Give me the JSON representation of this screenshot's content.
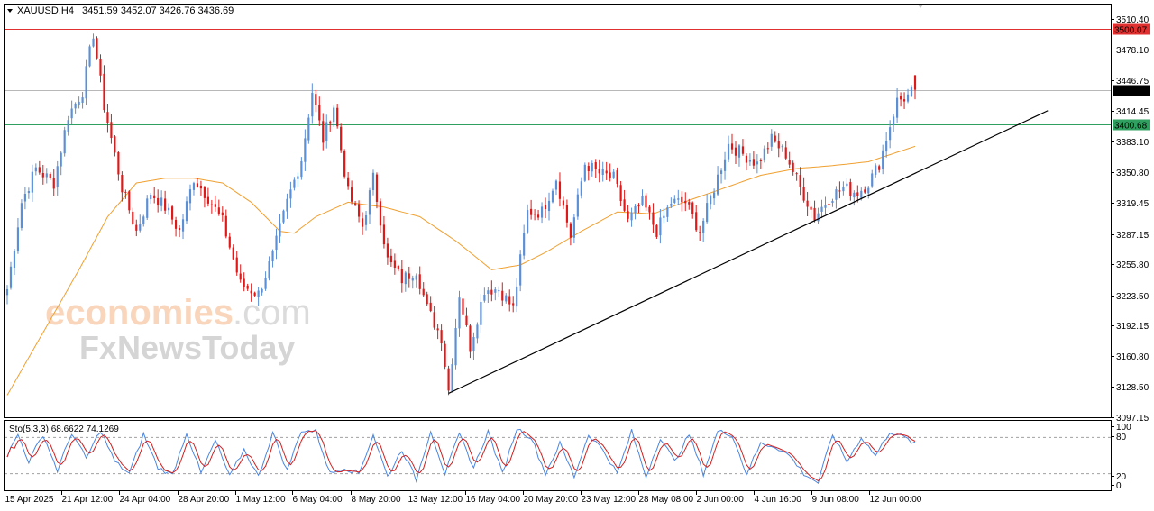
{
  "header": {
    "symbol": "XAUUSD,H4",
    "ohlc": "3451.59 3452.07 3426.76 3436.69"
  },
  "watermark": {
    "line1_a": "economies",
    "line1_b": ".com",
    "line2": "FxNewsToday"
  },
  "colors": {
    "bull": "#5b8fd6",
    "bear": "#e01818",
    "ma": "#f0a030",
    "resistance": "#e03030",
    "support": "#30a060",
    "current": "#b8b8b8",
    "trendline": "#000000",
    "stoch_main": "#4a86e0",
    "stoch_signal": "#d02020"
  },
  "chart_data": [
    {
      "type": "candlestick",
      "title": "XAUUSD,H4",
      "ohlc_last": {
        "open": 3451.59,
        "high": 3452.07,
        "low": 3426.76,
        "close": 3436.69
      },
      "ylim": [
        3097.15,
        3525
      ],
      "y_ticks": [
        "3510.40",
        "3478.10",
        "3446.75",
        "3414.45",
        "3383.10",
        "3350.80",
        "3319.45",
        "3287.15",
        "3255.80",
        "3223.50",
        "3192.15",
        "3160.80",
        "3128.50",
        "3097.15"
      ],
      "x_ticks": [
        "15 Apr 2025",
        "21 Apr 12:00",
        "24 Apr 04:00",
        "28 Apr 20:00",
        "1 May 12:00",
        "6 May 04:00",
        "8 May 20:00",
        "13 May 12:00",
        "16 May 04:00",
        "20 May 20:00",
        "23 May 12:00",
        "28 May 08:00",
        "2 Jun 00:00",
        "4 Jun 16:00",
        "9 Jun 08:00",
        "12 Jun 00:00"
      ],
      "horizontal_lines": [
        {
          "label": "3500.07",
          "value": 3500.07,
          "role": "resistance"
        },
        {
          "label": "3436.69",
          "value": 3436.69,
          "role": "current"
        },
        {
          "label": "3400.68",
          "value": 3400.68,
          "role": "support"
        }
      ],
      "trendline": {
        "from": {
          "bar": 123,
          "price": 3122
        },
        "to": {
          "bar": 290,
          "price": 3415
        }
      },
      "anchors": [
        [
          0,
          3230
        ],
        [
          4,
          3320
        ],
        [
          8,
          3355
        ],
        [
          13,
          3340
        ],
        [
          17,
          3410
        ],
        [
          21,
          3435
        ],
        [
          24,
          3495
        ],
        [
          27,
          3420
        ],
        [
          32,
          3335
        ],
        [
          36,
          3290
        ],
        [
          40,
          3330
        ],
        [
          44,
          3315
        ],
        [
          48,
          3290
        ],
        [
          52,
          3345
        ],
        [
          56,
          3325
        ],
        [
          60,
          3300
        ],
        [
          65,
          3235
        ],
        [
          70,
          3225
        ],
        [
          74,
          3265
        ],
        [
          78,
          3320
        ],
        [
          82,
          3365
        ],
        [
          85,
          3435
        ],
        [
          88,
          3385
        ],
        [
          91,
          3420
        ],
        [
          95,
          3330
        ],
        [
          99,
          3295
        ],
        [
          102,
          3345
        ],
        [
          106,
          3260
        ],
        [
          110,
          3240
        ],
        [
          114,
          3250
        ],
        [
          117,
          3210
        ],
        [
          121,
          3180
        ],
        [
          123,
          3125
        ],
        [
          126,
          3225
        ],
        [
          129,
          3170
        ],
        [
          133,
          3230
        ],
        [
          137,
          3230
        ],
        [
          141,
          3210
        ],
        [
          145,
          3310
        ],
        [
          149,
          3310
        ],
        [
          153,
          3345
        ],
        [
          157,
          3285
        ],
        [
          161,
          3360
        ],
        [
          165,
          3350
        ],
        [
          169,
          3345
        ],
        [
          173,
          3300
        ],
        [
          177,
          3320
        ],
        [
          181,
          3290
        ],
        [
          185,
          3320
        ],
        [
          189,
          3320
        ],
        [
          193,
          3290
        ],
        [
          197,
          3335
        ],
        [
          201,
          3380
        ],
        [
          205,
          3370
        ],
        [
          209,
          3360
        ],
        [
          213,
          3385
        ],
        [
          217,
          3370
        ],
        [
          221,
          3335
        ],
        [
          225,
          3305
        ],
        [
          229,
          3325
        ],
        [
          233,
          3335
        ],
        [
          237,
          3330
        ],
        [
          240,
          3340
        ],
        [
          243,
          3360
        ],
        [
          246,
          3400
        ],
        [
          248,
          3425
        ],
        [
          251,
          3430
        ],
        [
          253,
          3437
        ]
      ],
      "ma_anchors": [
        [
          0,
          3120
        ],
        [
          10,
          3185
        ],
        [
          20,
          3250
        ],
        [
          28,
          3305
        ],
        [
          36,
          3340
        ],
        [
          44,
          3345
        ],
        [
          52,
          3345
        ],
        [
          60,
          3340
        ],
        [
          68,
          3320
        ],
        [
          76,
          3290
        ],
        [
          80,
          3288
        ],
        [
          86,
          3305
        ],
        [
          95,
          3320
        ],
        [
          105,
          3315
        ],
        [
          115,
          3305
        ],
        [
          125,
          3280
        ],
        [
          135,
          3250
        ],
        [
          143,
          3255
        ],
        [
          150,
          3268
        ],
        [
          160,
          3290
        ],
        [
          170,
          3310
        ],
        [
          180,
          3308
        ],
        [
          190,
          3322
        ],
        [
          200,
          3335
        ],
        [
          210,
          3348
        ],
        [
          220,
          3355
        ],
        [
          230,
          3358
        ],
        [
          240,
          3362
        ],
        [
          253,
          3378
        ]
      ]
    },
    {
      "type": "line",
      "title": "Sto(5,3,3) 68.6622 74.1269",
      "ylim": [
        0,
        100
      ],
      "y_ticks": [
        "100",
        "80",
        "20",
        "0"
      ],
      "levels": [
        80,
        20
      ],
      "series": [
        {
          "name": "main",
          "value_last": 68.6622
        },
        {
          "name": "signal",
          "value_last": 74.1269
        }
      ],
      "stoch_anchors": [
        [
          0,
          50
        ],
        [
          3,
          85
        ],
        [
          6,
          40
        ],
        [
          10,
          85
        ],
        [
          14,
          25
        ],
        [
          18,
          88
        ],
        [
          22,
          45
        ],
        [
          26,
          92
        ],
        [
          30,
          40
        ],
        [
          34,
          20
        ],
        [
          38,
          85
        ],
        [
          42,
          30
        ],
        [
          46,
          18
        ],
        [
          50,
          88
        ],
        [
          54,
          20
        ],
        [
          58,
          75
        ],
        [
          62,
          15
        ],
        [
          66,
          60
        ],
        [
          70,
          15
        ],
        [
          74,
          88
        ],
        [
          78,
          25
        ],
        [
          82,
          92
        ],
        [
          86,
          90
        ],
        [
          90,
          20
        ],
        [
          94,
          30
        ],
        [
          98,
          20
        ],
        [
          102,
          85
        ],
        [
          106,
          15
        ],
        [
          110,
          60
        ],
        [
          114,
          10
        ],
        [
          118,
          92
        ],
        [
          122,
          20
        ],
        [
          126,
          85
        ],
        [
          130,
          30
        ],
        [
          134,
          90
        ],
        [
          138,
          20
        ],
        [
          142,
          95
        ],
        [
          146,
          80
        ],
        [
          150,
          20
        ],
        [
          154,
          70
        ],
        [
          158,
          15
        ],
        [
          162,
          85
        ],
        [
          166,
          60
        ],
        [
          170,
          20
        ],
        [
          174,
          90
        ],
        [
          178,
          15
        ],
        [
          182,
          80
        ],
        [
          186,
          40
        ],
        [
          190,
          85
        ],
        [
          194,
          20
        ],
        [
          198,
          90
        ],
        [
          202,
          85
        ],
        [
          206,
          20
        ],
        [
          210,
          70
        ],
        [
          214,
          65
        ],
        [
          218,
          50
        ],
        [
          222,
          20
        ],
        [
          226,
          5
        ],
        [
          230,
          85
        ],
        [
          234,
          40
        ],
        [
          238,
          80
        ],
        [
          242,
          50
        ],
        [
          246,
          90
        ],
        [
          250,
          80
        ],
        [
          253,
          69
        ]
      ]
    }
  ]
}
